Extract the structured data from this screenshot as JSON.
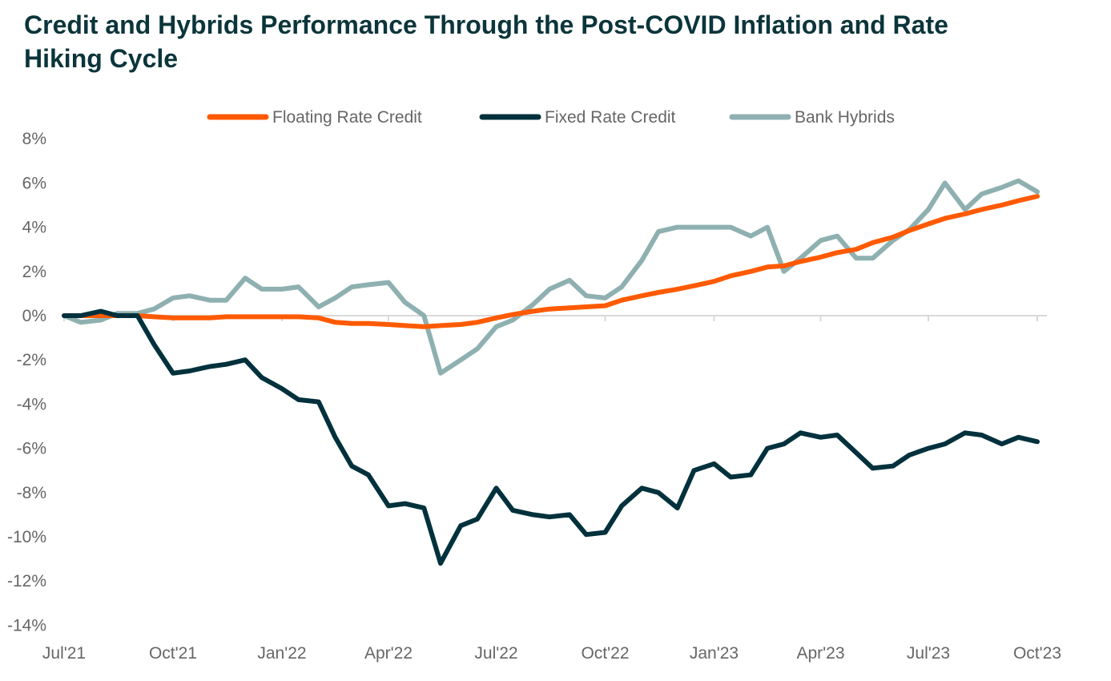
{
  "chart_data": {
    "type": "line",
    "title": "Credit and Hybrids Performance Through the Post-COVID Inflation and Rate Hiking Cycle",
    "xlabel": "",
    "ylabel": "",
    "ylim": [
      -14,
      8
    ],
    "yticks": [
      "8%",
      "6%",
      "4%",
      "2%",
      "0%",
      "-2%",
      "-4%",
      "-6%",
      "-8%",
      "-10%",
      "-12%",
      "-14%"
    ],
    "ytick_values": [
      8,
      6,
      4,
      2,
      0,
      -2,
      -4,
      -6,
      -8,
      -10,
      -12,
      -14
    ],
    "xlim": [
      "2021-07-01",
      "2023-10-01"
    ],
    "xticks": [
      "Jul'21",
      "Oct'21",
      "Jan'22",
      "Apr'22",
      "Jul'22",
      "Oct'22",
      "Jan'23",
      "Apr'23",
      "Jul'23",
      "Oct'23"
    ],
    "xtick_dates": [
      "2021-07-01",
      "2021-10-01",
      "2022-01-01",
      "2022-04-01",
      "2022-07-01",
      "2022-10-01",
      "2023-01-01",
      "2023-04-01",
      "2023-07-01",
      "2023-10-01"
    ],
    "grid": false,
    "legend_placement": "top",
    "x": [
      "2021-07-01",
      "2021-07-15",
      "2021-08-01",
      "2021-08-15",
      "2021-09-01",
      "2021-09-15",
      "2021-10-01",
      "2021-10-15",
      "2021-11-01",
      "2021-11-15",
      "2021-12-01",
      "2021-12-15",
      "2022-01-01",
      "2022-01-15",
      "2022-02-01",
      "2022-02-15",
      "2022-03-01",
      "2022-03-15",
      "2022-04-01",
      "2022-04-15",
      "2022-05-01",
      "2022-05-15",
      "2022-06-01",
      "2022-06-15",
      "2022-07-01",
      "2022-07-15",
      "2022-08-01",
      "2022-08-15",
      "2022-09-01",
      "2022-09-15",
      "2022-10-01",
      "2022-10-15",
      "2022-11-01",
      "2022-11-15",
      "2022-12-01",
      "2022-12-15",
      "2023-01-01",
      "2023-01-15",
      "2023-02-01",
      "2023-02-15",
      "2023-03-01",
      "2023-03-15",
      "2023-04-01",
      "2023-04-15",
      "2023-05-01",
      "2023-05-15",
      "2023-06-01",
      "2023-06-15",
      "2023-07-01",
      "2023-07-15",
      "2023-08-01",
      "2023-08-15",
      "2023-09-01",
      "2023-09-15",
      "2023-10-01"
    ],
    "series": [
      {
        "name": "Floating Rate Credit",
        "color": "#FF5A00",
        "values": [
          0,
          0,
          0,
          0,
          0,
          -0.05,
          -0.1,
          -0.1,
          -0.1,
          -0.05,
          -0.05,
          -0.05,
          -0.05,
          -0.05,
          -0.1,
          -0.3,
          -0.35,
          -0.35,
          -0.4,
          -0.45,
          -0.5,
          -0.45,
          -0.4,
          -0.3,
          -0.1,
          0.05,
          0.2,
          0.3,
          0.35,
          0.4,
          0.45,
          0.7,
          0.9,
          1.05,
          1.2,
          1.35,
          1.55,
          1.8,
          2.0,
          2.2,
          2.25,
          2.45,
          2.65,
          2.85,
          3.0,
          3.3,
          3.55,
          3.85,
          4.15,
          4.4,
          4.6,
          4.8,
          5.0,
          5.2,
          5.4
        ]
      },
      {
        "name": "Fixed Rate Credit",
        "color": "#00313C",
        "values": [
          0,
          0,
          0.2,
          0,
          0,
          -1.3,
          -2.6,
          -2.5,
          -2.3,
          -2.2,
          -2.0,
          -2.8,
          -3.3,
          -3.8,
          -3.9,
          -5.5,
          -6.8,
          -7.2,
          -8.6,
          -8.5,
          -8.7,
          -11.2,
          -9.5,
          -9.2,
          -7.8,
          -8.8,
          -9.0,
          -9.1,
          -9.0,
          -9.9,
          -9.8,
          -8.6,
          -7.8,
          -8.0,
          -8.7,
          -7.0,
          -6.7,
          -7.3,
          -7.2,
          -6.0,
          -5.8,
          -5.3,
          -5.5,
          -5.4,
          -6.2,
          -6.9,
          -6.8,
          -6.3,
          -6.0,
          -5.8,
          -5.3,
          -5.4,
          -5.8,
          -5.5,
          -5.7
        ]
      },
      {
        "name": "Bank Hybrids",
        "color": "#8FB0B0",
        "values": [
          0,
          -0.3,
          -0.2,
          0.1,
          0.1,
          0.3,
          0.8,
          0.9,
          0.7,
          0.7,
          1.7,
          1.2,
          1.2,
          1.3,
          0.4,
          0.8,
          1.3,
          1.4,
          1.5,
          0.6,
          0.0,
          -2.6,
          -2.0,
          -1.5,
          -0.5,
          -0.2,
          0.5,
          1.2,
          1.6,
          0.9,
          0.8,
          1.3,
          2.5,
          3.8,
          4.0,
          4.0,
          4.0,
          4.0,
          3.6,
          4.0,
          2.0,
          2.6,
          3.4,
          3.6,
          2.6,
          2.6,
          3.4,
          3.9,
          4.8,
          6.0,
          4.8,
          5.5,
          5.8,
          6.1,
          5.6
        ]
      }
    ]
  }
}
